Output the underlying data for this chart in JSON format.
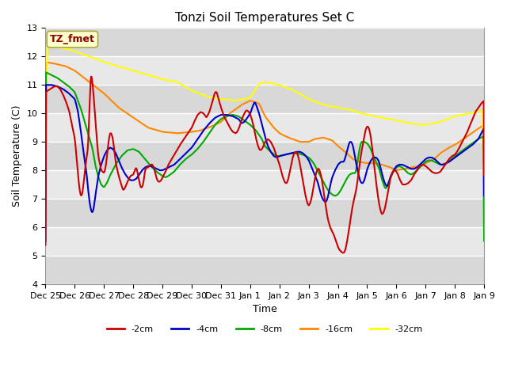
{
  "title": "Tonzi Soil Temperatures Set C",
  "xlabel": "Time",
  "ylabel": "Soil Temperature (C)",
  "ylim": [
    4.0,
    13.0
  ],
  "yticks": [
    4.0,
    5.0,
    6.0,
    7.0,
    8.0,
    9.0,
    10.0,
    11.0,
    12.0,
    13.0
  ],
  "xtick_labels": [
    "Dec 25",
    "Dec 26",
    "Dec 27",
    "Dec 28",
    "Dec 29",
    "Dec 30",
    "Dec 31",
    "Jan 1",
    "Jan 2",
    "Jan 3",
    "Jan 4",
    "Jan 5",
    "Jan 6",
    "Jan 7",
    "Jan 8",
    "Jan 9"
  ],
  "colors": {
    "-2cm": "#cc0000",
    "-4cm": "#0000cc",
    "-8cm": "#00aa00",
    "-16cm": "#ff8800",
    "-32cm": "#ffff00"
  },
  "annotation_text": "TZ_fmet",
  "annotation_color": "#8b0000",
  "annotation_bg": "#ffffcc",
  "annotation_edge": "#aaaa44",
  "fig_bg": "#ffffff",
  "plot_bg_light": "#e8e8e8",
  "plot_bg_dark": "#d8d8d8",
  "grid_color": "#ffffff",
  "title_fontsize": 11,
  "axis_fontsize": 8,
  "legend_fontsize": 8
}
